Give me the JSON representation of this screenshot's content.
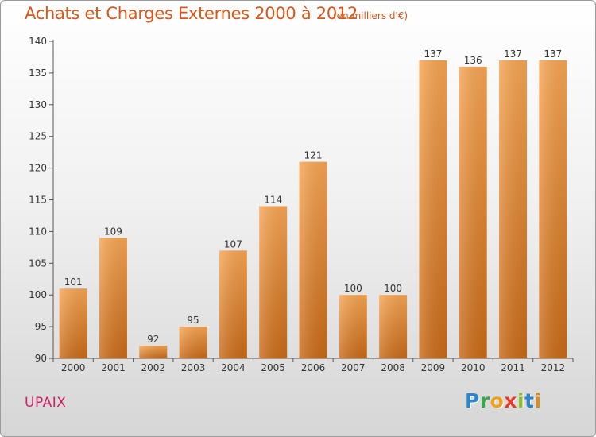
{
  "title": "Achats et Charges Externes 2000 à 2012",
  "subtitle": "(en milliers d'€)",
  "commune": "UPAIX",
  "logo": {
    "letters": [
      "P",
      "r",
      "o",
      "x",
      "i",
      "t",
      "i"
    ],
    "text": "Proxiti"
  },
  "colors": {
    "bar_top": "#f7a553",
    "bar_bottom": "#c96a17",
    "title": "#d9571a",
    "commune": "#cc1f63"
  },
  "chart_data": {
    "type": "bar",
    "title": "Achats et Charges Externes 2000 à 2012",
    "subtitle": "(en milliers d'€)",
    "xlabel": "",
    "ylabel": "",
    "categories": [
      "2000",
      "2001",
      "2002",
      "2003",
      "2004",
      "2005",
      "2006",
      "2007",
      "2008",
      "2009",
      "2010",
      "2011",
      "2012"
    ],
    "values": [
      101,
      109,
      92,
      95,
      107,
      114,
      121,
      100,
      100,
      137,
      136,
      137,
      137
    ],
    "ylim": [
      90,
      140
    ],
    "yticks": [
      90,
      95,
      100,
      105,
      110,
      115,
      120,
      125,
      130,
      135,
      140
    ],
    "grid": false,
    "legend": "none"
  }
}
